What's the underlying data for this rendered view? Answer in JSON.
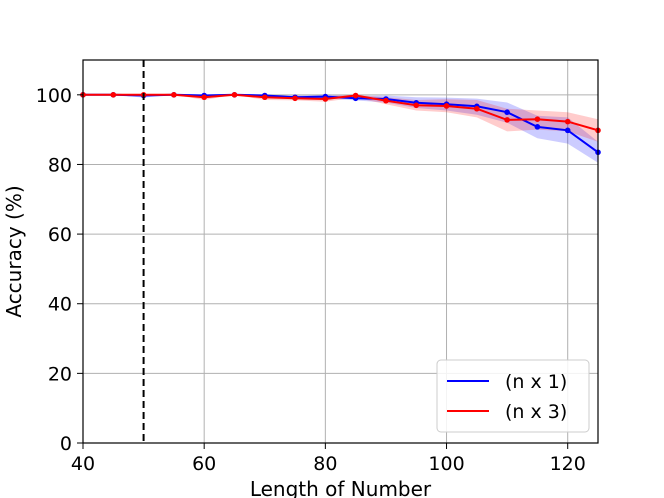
{
  "chart_data": {
    "type": "line",
    "title": "",
    "xlabel": "Length of Number",
    "ylabel": "Accuracy (%)",
    "xlim": [
      40,
      125
    ],
    "ylim": [
      0,
      110
    ],
    "xticks": [
      40,
      60,
      80,
      100,
      120
    ],
    "yticks": [
      0,
      20,
      40,
      60,
      80,
      100
    ],
    "grid": true,
    "legend_position": "lower-right",
    "vline": {
      "x": 50,
      "style": "dashed",
      "color": "#000000"
    },
    "series": [
      {
        "name": "(n x 1)",
        "color": "#0000ff",
        "x": [
          40,
          45,
          50,
          55,
          60,
          65,
          70,
          75,
          80,
          85,
          90,
          95,
          100,
          105,
          110,
          115,
          120,
          125
        ],
        "y": [
          100,
          100,
          99.8,
          100,
          99.8,
          100,
          99.8,
          99.3,
          99.5,
          99.0,
          98.8,
          97.7,
          97.3,
          96.7,
          95.0,
          90.8,
          89.8,
          83.5
        ],
        "lower": [
          100,
          100,
          99.2,
          100,
          99.3,
          100,
          99.4,
          98.9,
          99.0,
          98.4,
          97.8,
          96.2,
          95.5,
          94.3,
          92.0,
          87.5,
          86.0,
          80.5
        ],
        "upper": [
          100,
          100,
          100,
          100,
          100,
          100,
          100,
          99.8,
          100,
          99.7,
          99.8,
          99.3,
          99.2,
          98.9,
          97.8,
          94.0,
          93.5,
          86.5
        ]
      },
      {
        "name": "(n x 3)",
        "color": "#ff0000",
        "x": [
          40,
          45,
          50,
          55,
          60,
          65,
          70,
          75,
          80,
          85,
          90,
          95,
          100,
          105,
          110,
          115,
          120,
          125
        ],
        "y": [
          100,
          100,
          100,
          100,
          99.3,
          100,
          99.3,
          99.0,
          98.8,
          99.8,
          98.3,
          97.0,
          96.8,
          96.0,
          92.8,
          93.0,
          92.3,
          89.8
        ],
        "lower": [
          100,
          100,
          100,
          100,
          98.5,
          100,
          98.5,
          98.4,
          98.0,
          99.2,
          97.3,
          95.5,
          95.0,
          93.5,
          89.5,
          90.0,
          89.5,
          86.5
        ],
        "upper": [
          100,
          100,
          100,
          100,
          100,
          100,
          99.9,
          99.6,
          99.6,
          100,
          99.3,
          98.5,
          98.7,
          98.5,
          96.0,
          95.5,
          95.0,
          93.0
        ]
      }
    ]
  }
}
